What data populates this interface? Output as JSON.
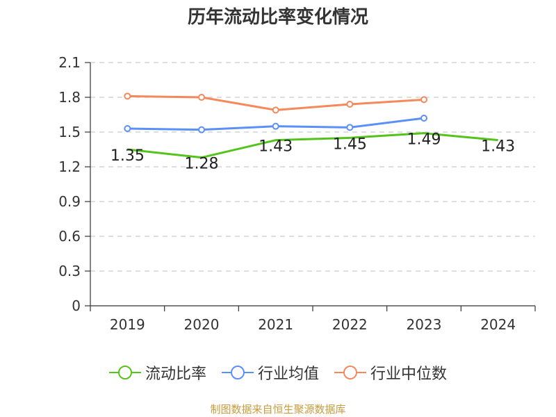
{
  "chart_data": {
    "type": "line",
    "title": "历年流动比率变化情况",
    "categories": [
      "2019",
      "2020",
      "2021",
      "2022",
      "2023",
      "2024"
    ],
    "ylim": [
      0,
      2.1
    ],
    "yticks": [
      "0",
      "0.3",
      "0.6",
      "0.9",
      "1.2",
      "1.5",
      "1.8",
      "2.1"
    ],
    "grid": true,
    "legend_position": "bottom",
    "series": [
      {
        "name": "流动比率",
        "color": "#52c41a",
        "values": [
          1.35,
          1.28,
          1.43,
          1.45,
          1.49,
          1.43
        ],
        "labels": [
          "1.35",
          "1.28",
          "1.43",
          "1.45",
          "1.49",
          "1.43"
        ]
      },
      {
        "name": "行业均值",
        "color": "#5b8ff9",
        "values": [
          1.53,
          1.52,
          1.55,
          1.54,
          1.62,
          null
        ]
      },
      {
        "name": "行业中位数",
        "color": "#f5895b",
        "values": [
          1.81,
          1.8,
          1.69,
          1.74,
          1.78,
          null
        ]
      }
    ]
  },
  "source_note": "制图数据来自恒生聚源数据库"
}
